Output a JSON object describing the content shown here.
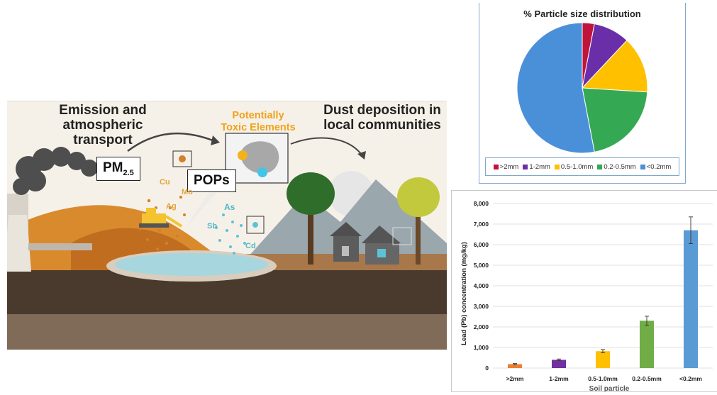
{
  "illustration": {
    "heading_left": "Emission and atmospheric transport",
    "heading_left_line1": "Emission and",
    "heading_left_line2": "atmospheric transport",
    "heading_middle_line1": "Potentially",
    "heading_middle_line2": "Toxic Elements",
    "heading_right_line1": "Dust deposition in",
    "heading_right_line2": "local communities",
    "label_pm": "PM",
    "label_pm_sub": "2.5",
    "label_pops": "POPs",
    "elements": [
      "Cu",
      "Mo",
      "Ag",
      "As",
      "Sb",
      "Cd"
    ],
    "colors": {
      "sky": "#f4efe6",
      "soil": "#4a3a2e",
      "hill": "#d78b2c",
      "water": "#a7d6de",
      "accent_orange": "#f0a21c",
      "accent_cyan": "#5cc3d6"
    }
  },
  "chart_data": [
    {
      "type": "pie",
      "title": "% Particle size distribution",
      "categories": [
        ">2mm",
        "1-2mm",
        "0.5-1.0mm",
        "0.2-0.5mm",
        "<0.2mm"
      ],
      "values": [
        3,
        9,
        14,
        21,
        53
      ],
      "colors": [
        "#c0143c",
        "#6a2fa8",
        "#ffc000",
        "#34a853",
        "#4a90d9"
      ],
      "legend_position": "bottom"
    },
    {
      "type": "bar",
      "title": "",
      "xlabel": "Soil particle",
      "ylabel": "Lead (Pb) concentration (mg/kg)",
      "categories": [
        ">2mm",
        "1-2mm",
        "0.5-1.0mm",
        "0.2-0.5mm",
        "<0.2mm"
      ],
      "values": [
        190,
        400,
        820,
        2300,
        6700
      ],
      "errors": [
        30,
        40,
        80,
        220,
        650
      ],
      "colors": [
        "#ed7d31",
        "#7030a0",
        "#ffc000",
        "#70ad47",
        "#5b9bd5"
      ],
      "ylim": [
        0,
        8000
      ],
      "yticks": [
        0,
        1000,
        2000,
        3000,
        4000,
        5000,
        6000,
        7000,
        8000
      ],
      "ytick_labels": [
        "0",
        "1,000",
        "2,000",
        "3,000",
        "4,000",
        "5,000",
        "6,000",
        "7,000",
        "8,000"
      ],
      "grid": true
    }
  ]
}
